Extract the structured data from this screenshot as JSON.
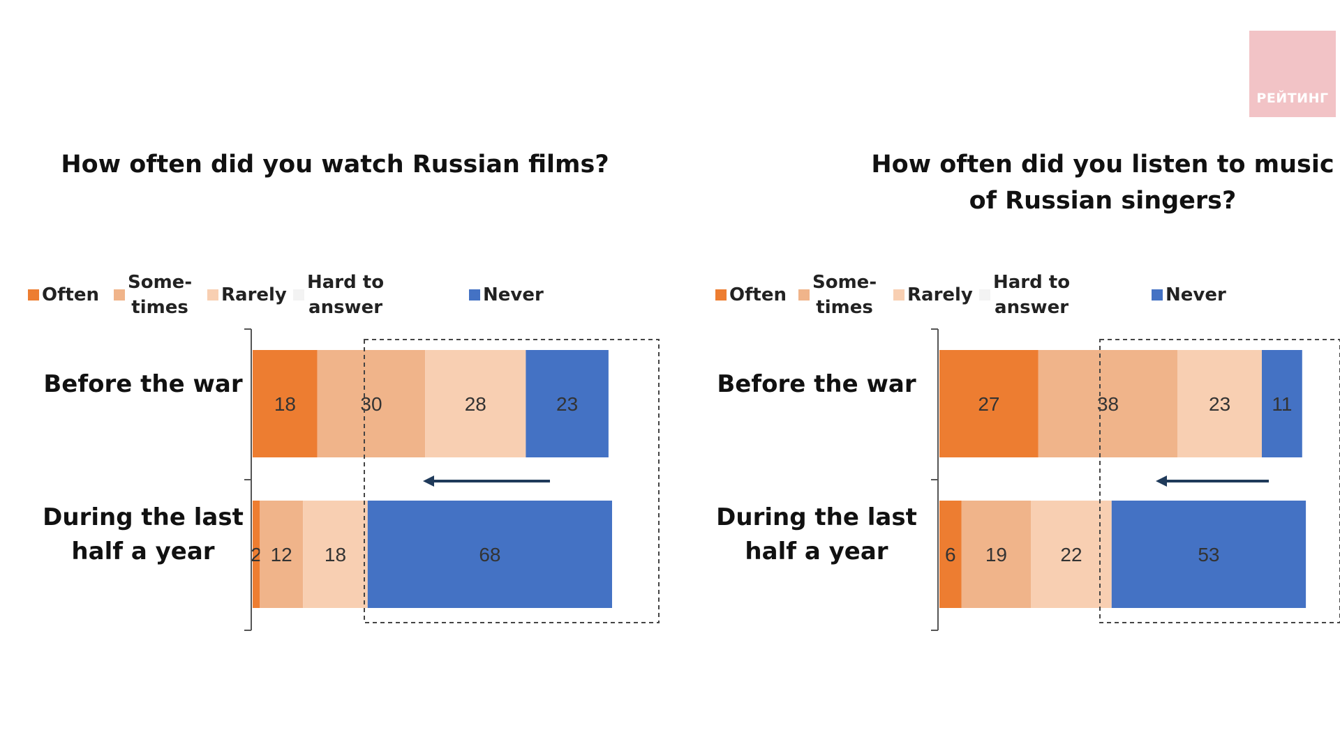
{
  "logo": {
    "text": "РЕЙТИНГ"
  },
  "colors": {
    "often": "#ed7d31",
    "sometimes": "#f0b48a",
    "rarely": "#f8cfb2",
    "hard_to_answer": "#f3f3f3",
    "never": "#4472c4"
  },
  "legend": [
    {
      "key": "often",
      "label": "Often"
    },
    {
      "key": "sometimes",
      "label": "Some-\ntimes"
    },
    {
      "key": "rarely",
      "label": "Rarely"
    },
    {
      "key": "hard_to_answer",
      "label": "Hard to\nanswer"
    },
    {
      "key": "never",
      "label": "Never"
    }
  ],
  "chart_data": [
    {
      "type": "bar",
      "stacked": true,
      "orientation": "horizontal",
      "title": "How often did you watch Russian films?",
      "categories": [
        "Before the war",
        "During the last\nhalf a year"
      ],
      "series": [
        {
          "name": "Often",
          "values": [
            18,
            2
          ]
        },
        {
          "name": "Some-times",
          "values": [
            30,
            12
          ]
        },
        {
          "name": "Rarely",
          "values": [
            28,
            18
          ]
        },
        {
          "name": "Hard to answer",
          "values": [
            0,
            0
          ]
        },
        {
          "name": "Never",
          "values": [
            23,
            68
          ]
        }
      ],
      "xlim": [
        0,
        100
      ],
      "legend_position": "top",
      "annotation": "dashed box around Sometimes/Rarely/Never with left-pointing arrow"
    },
    {
      "type": "bar",
      "stacked": true,
      "orientation": "horizontal",
      "title": "How often did you listen to music\nof Russian singers?",
      "categories": [
        "Before the war",
        "During the last\nhalf a year"
      ],
      "series": [
        {
          "name": "Often",
          "values": [
            27,
            6
          ]
        },
        {
          "name": "Some-times",
          "values": [
            38,
            19
          ]
        },
        {
          "name": "Rarely",
          "values": [
            23,
            22
          ]
        },
        {
          "name": "Hard to answer",
          "values": [
            0,
            0
          ]
        },
        {
          "name": "Never",
          "values": [
            11,
            53
          ]
        }
      ],
      "xlim": [
        0,
        100
      ],
      "legend_position": "top",
      "annotation": "dashed box around Sometimes/Rarely/Never with left-pointing arrow"
    }
  ]
}
